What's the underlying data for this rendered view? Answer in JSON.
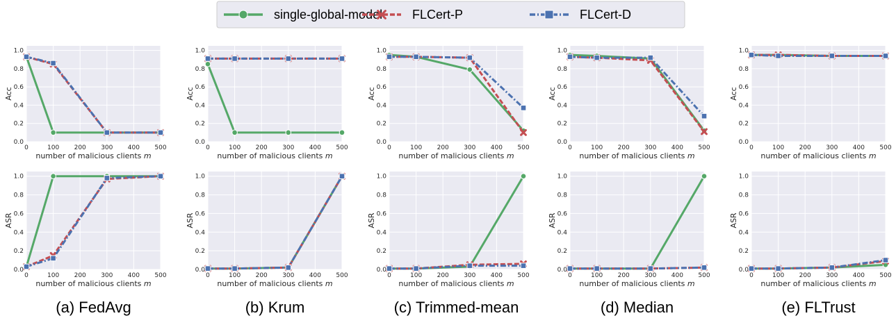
{
  "legend": {
    "placement": "top-center",
    "entries": [
      {
        "label": "single-global-model",
        "color": "#55a868",
        "marker": "circle",
        "dash": "solid"
      },
      {
        "label": "FLCert-P",
        "color": "#c44e52",
        "marker": "x",
        "dash": "dashed"
      },
      {
        "label": "FLCert-D",
        "color": "#4c72b0",
        "marker": "square",
        "dash": "dashdot"
      }
    ]
  },
  "chart_data": [
    {
      "type": "line",
      "caption": "(a) FedAvg",
      "metric": "Acc",
      "x": [
        0,
        100,
        300,
        500
      ],
      "xlabel": "number of malicious clients m",
      "ylabel": "Acc",
      "xlim": [
        0,
        500
      ],
      "ylim": [
        0,
        1.05
      ],
      "xticks": [
        0,
        100,
        200,
        300,
        400,
        500
      ],
      "yticks": [
        0,
        0.2,
        0.4,
        0.6,
        0.8,
        1.0
      ],
      "grid": true,
      "series": [
        {
          "name": "single-global-model",
          "values": [
            0.93,
            0.1,
            0.1,
            0.1
          ]
        },
        {
          "name": "FLCert-P",
          "values": [
            0.93,
            0.85,
            0.1,
            0.1
          ]
        },
        {
          "name": "FLCert-D",
          "values": [
            0.93,
            0.86,
            0.1,
            0.1
          ]
        }
      ]
    },
    {
      "type": "line",
      "caption": "(b) Krum",
      "metric": "Acc",
      "x": [
        0,
        100,
        300,
        500
      ],
      "xlabel": "number of malicious clients m",
      "ylabel": "Acc",
      "xlim": [
        0,
        500
      ],
      "ylim": [
        0,
        1.05
      ],
      "xticks": [
        0,
        100,
        200,
        300,
        400,
        500
      ],
      "yticks": [
        0,
        0.2,
        0.4,
        0.6,
        0.8,
        1.0
      ],
      "grid": true,
      "series": [
        {
          "name": "single-global-model",
          "values": [
            0.85,
            0.1,
            0.1,
            0.1
          ]
        },
        {
          "name": "FLCert-P",
          "values": [
            0.91,
            0.91,
            0.91,
            0.91
          ]
        },
        {
          "name": "FLCert-D",
          "values": [
            0.91,
            0.91,
            0.91,
            0.91
          ]
        }
      ]
    },
    {
      "type": "line",
      "caption": "(c) Trimmed-mean",
      "metric": "Acc",
      "x": [
        0,
        100,
        300,
        500
      ],
      "xlabel": "number of malicious clients m",
      "ylabel": "Acc",
      "xlim": [
        0,
        500
      ],
      "ylim": [
        0,
        1.05
      ],
      "xticks": [
        0,
        100,
        200,
        300,
        400,
        500
      ],
      "yticks": [
        0,
        0.2,
        0.4,
        0.6,
        0.8,
        1.0
      ],
      "grid": true,
      "series": [
        {
          "name": "single-global-model",
          "values": [
            0.95,
            0.93,
            0.79,
            0.12
          ]
        },
        {
          "name": "FLCert-P",
          "values": [
            0.93,
            0.93,
            0.92,
            0.1
          ]
        },
        {
          "name": "FLCert-D",
          "values": [
            0.93,
            0.93,
            0.92,
            0.37
          ]
        }
      ]
    },
    {
      "type": "line",
      "caption": "(d) Median",
      "metric": "Acc",
      "x": [
        0,
        100,
        300,
        500
      ],
      "xlabel": "number of malicious clients m",
      "ylabel": "Acc",
      "xlim": [
        0,
        500
      ],
      "ylim": [
        0,
        1.05
      ],
      "xticks": [
        0,
        100,
        200,
        300,
        400,
        500
      ],
      "yticks": [
        0,
        0.2,
        0.4,
        0.6,
        0.8,
        1.0
      ],
      "grid": true,
      "series": [
        {
          "name": "single-global-model",
          "values": [
            0.95,
            0.94,
            0.91,
            0.12
          ]
        },
        {
          "name": "FLCert-P",
          "values": [
            0.93,
            0.92,
            0.89,
            0.11
          ]
        },
        {
          "name": "FLCert-D",
          "values": [
            0.93,
            0.92,
            0.92,
            0.28
          ]
        }
      ]
    },
    {
      "type": "line",
      "caption": "(e) FLTrust",
      "metric": "Acc",
      "x": [
        0,
        100,
        300,
        500
      ],
      "xlabel": "number of malicious clients m",
      "ylabel": "Acc",
      "xlim": [
        0,
        500
      ],
      "ylim": [
        0,
        1.05
      ],
      "xticks": [
        0,
        100,
        200,
        300,
        400,
        500
      ],
      "yticks": [
        0,
        0.2,
        0.4,
        0.6,
        0.8,
        1.0
      ],
      "grid": true,
      "series": [
        {
          "name": "single-global-model",
          "values": [
            0.95,
            0.95,
            0.94,
            0.94
          ]
        },
        {
          "name": "FLCert-P",
          "values": [
            0.95,
            0.95,
            0.94,
            0.94
          ]
        },
        {
          "name": "FLCert-D",
          "values": [
            0.95,
            0.94,
            0.94,
            0.94
          ]
        }
      ]
    },
    {
      "type": "line",
      "caption": "(a) FedAvg",
      "metric": "ASR",
      "x": [
        0,
        100,
        300,
        500
      ],
      "xlabel": "number of malicious clients m",
      "ylabel": "ASR",
      "xlim": [
        0,
        500
      ],
      "ylim": [
        0,
        1.05
      ],
      "xticks": [
        0,
        100,
        200,
        300,
        400,
        500
      ],
      "yticks": [
        0,
        0.2,
        0.4,
        0.6,
        0.8,
        1.0
      ],
      "grid": true,
      "series": [
        {
          "name": "single-global-model",
          "values": [
            0.03,
            1.0,
            1.0,
            1.0
          ]
        },
        {
          "name": "FLCert-P",
          "values": [
            0.03,
            0.15,
            0.97,
            1.0
          ]
        },
        {
          "name": "FLCert-D",
          "values": [
            0.03,
            0.12,
            0.98,
            1.0
          ]
        }
      ]
    },
    {
      "type": "line",
      "caption": "(b) Krum",
      "metric": "ASR",
      "x": [
        0,
        100,
        300,
        500
      ],
      "xlabel": "number of malicious clients m",
      "ylabel": "ASR",
      "xlim": [
        0,
        500
      ],
      "ylim": [
        0,
        1.05
      ],
      "xticks": [
        0,
        100,
        200,
        300,
        400,
        500
      ],
      "yticks": [
        0,
        0.2,
        0.4,
        0.6,
        0.8,
        1.0
      ],
      "grid": true,
      "series": [
        {
          "name": "single-global-model",
          "values": [
            0.01,
            0.01,
            0.02,
            1.0
          ]
        },
        {
          "name": "FLCert-P",
          "values": [
            0.01,
            0.01,
            0.02,
            1.0
          ]
        },
        {
          "name": "FLCert-D",
          "values": [
            0.01,
            0.01,
            0.02,
            1.0
          ]
        }
      ]
    },
    {
      "type": "line",
      "caption": "(c) Trimmed-mean",
      "metric": "ASR",
      "x": [
        0,
        100,
        300,
        500
      ],
      "xlabel": "number of malicious clients m",
      "ylabel": "ASR",
      "xlim": [
        0,
        500
      ],
      "ylim": [
        0,
        1.05
      ],
      "xticks": [
        0,
        100,
        200,
        300,
        400,
        500
      ],
      "yticks": [
        0,
        0.2,
        0.4,
        0.6,
        0.8,
        1.0
      ],
      "grid": true,
      "series": [
        {
          "name": "single-global-model",
          "values": [
            0.01,
            0.01,
            0.03,
            1.0
          ]
        },
        {
          "name": "FLCert-P",
          "values": [
            0.01,
            0.01,
            0.05,
            0.06
          ]
        },
        {
          "name": "FLCert-D",
          "values": [
            0.01,
            0.01,
            0.04,
            0.04
          ]
        }
      ]
    },
    {
      "type": "line",
      "caption": "(d) Median",
      "metric": "ASR",
      "x": [
        0,
        100,
        300,
        500
      ],
      "xlabel": "number of malicious clients m",
      "ylabel": "ASR",
      "xlim": [
        0,
        500
      ],
      "ylim": [
        0,
        1.05
      ],
      "xticks": [
        0,
        100,
        200,
        300,
        400,
        500
      ],
      "yticks": [
        0,
        0.2,
        0.4,
        0.6,
        0.8,
        1.0
      ],
      "grid": true,
      "series": [
        {
          "name": "single-global-model",
          "values": [
            0.01,
            0.01,
            0.01,
            1.0
          ]
        },
        {
          "name": "FLCert-P",
          "values": [
            0.01,
            0.01,
            0.01,
            0.02
          ]
        },
        {
          "name": "FLCert-D",
          "values": [
            0.01,
            0.01,
            0.01,
            0.02
          ]
        }
      ]
    },
    {
      "type": "line",
      "caption": "(e) FLTrust",
      "metric": "ASR",
      "x": [
        0,
        100,
        300,
        500
      ],
      "xlabel": "number of malicious clients m",
      "ylabel": "ASR",
      "xlim": [
        0,
        500
      ],
      "ylim": [
        0,
        1.05
      ],
      "xticks": [
        0,
        100,
        200,
        300,
        400,
        500
      ],
      "yticks": [
        0,
        0.2,
        0.4,
        0.6,
        0.8,
        1.0
      ],
      "grid": true,
      "series": [
        {
          "name": "single-global-model",
          "values": [
            0.01,
            0.01,
            0.02,
            0.05
          ]
        },
        {
          "name": "FLCert-P",
          "values": [
            0.01,
            0.01,
            0.02,
            0.09
          ]
        },
        {
          "name": "FLCert-D",
          "values": [
            0.01,
            0.01,
            0.02,
            0.1
          ]
        }
      ]
    }
  ]
}
